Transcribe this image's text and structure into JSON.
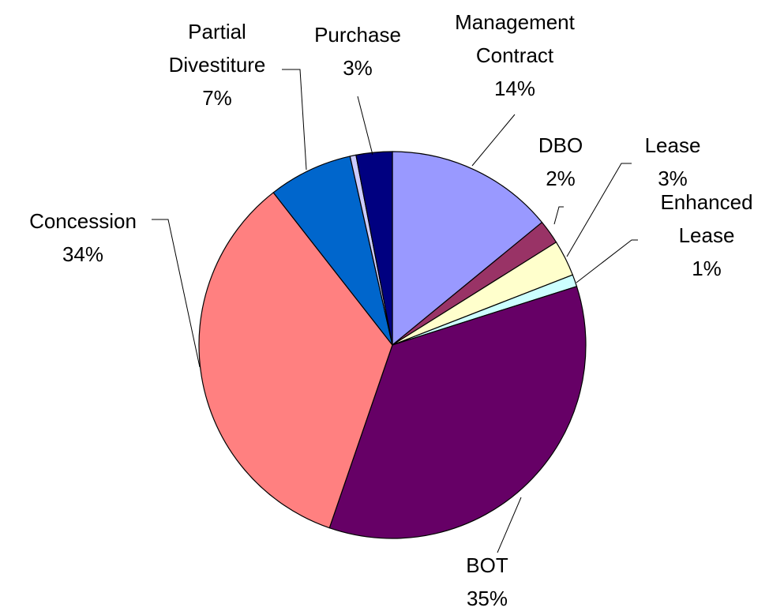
{
  "chart_data": {
    "type": "pie",
    "categories": [
      "Management Contract",
      "DBO",
      "Lease",
      "Enhanced Lease",
      "BOT",
      "Concession",
      "Partial Divestiture",
      null,
      "Purchase"
    ],
    "values": [
      14,
      2,
      3,
      1,
      35,
      34,
      7,
      0.5,
      3
    ],
    "value_labels": [
      "14%",
      "2%",
      "3%",
      "1%",
      "35%",
      "34%",
      "7%",
      null,
      "3%"
    ],
    "colors": [
      "#9999ff",
      "#993366",
      "#ffffcc",
      "#ccffff",
      "#660066",
      "#ff8080",
      "#0066cc",
      "#ccccff",
      "#000080"
    ]
  }
}
